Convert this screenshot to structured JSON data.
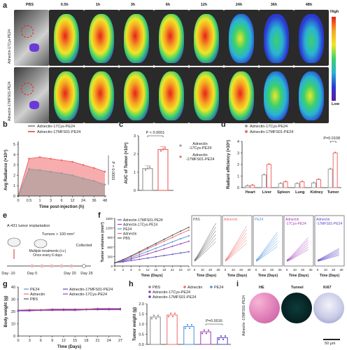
{
  "panel_a": {
    "letter": "a",
    "timepoints": [
      "PBS",
      "0.5h",
      "1h",
      "3h",
      "6h",
      "12h",
      "24h",
      "36h",
      "48h"
    ],
    "row1_label": "Adnectin-17Cys-PE24",
    "row2_label": "Adnectin-17MFS01-PE24",
    "scale_high": "High",
    "scale_low": "Low",
    "intensity_row1": [
      0,
      0.85,
      0.95,
      0.9,
      0.85,
      0.8,
      0.65,
      0.5,
      0.45
    ],
    "intensity_row2": [
      0,
      0.9,
      0.95,
      0.95,
      0.9,
      0.85,
      0.75,
      0.65,
      0.55
    ],
    "colors": {
      "high": "#e8211b",
      "mid": "#f0e626",
      "mid2": "#3bd16c",
      "low": "#2a3bd4"
    }
  },
  "panel_b": {
    "letter": "b",
    "chart_data": {
      "type": "area",
      "xlabel": "Time post-injection (h)",
      "ylabel": "Avg Radiance (×10⁸)",
      "x_ticks": [
        "0",
        "0.5",
        "1",
        "3",
        "6",
        "12",
        "24",
        "36",
        "48"
      ],
      "y_ticks": [
        "0",
        "1",
        "2",
        "3",
        "4",
        "5"
      ],
      "ylim": [
        0,
        5
      ],
      "series": [
        {
          "name": "Adnectin-17Cys-PE24",
          "color": "#9a9a9a",
          "values": [
            0,
            2.6,
            2.5,
            2.35,
            2.2,
            2.0,
            1.7,
            1.45,
            1.1
          ]
        },
        {
          "name": "Adnectin-17MFS01-PE24",
          "color": "#f06a6a",
          "values": [
            0,
            3.6,
            3.75,
            3.6,
            3.45,
            3.3,
            3.0,
            2.7,
            2.35
          ]
        }
      ],
      "annotation": "P = 0.0003"
    }
  },
  "panel_c": {
    "letter": "c",
    "chart_data": {
      "type": "bar",
      "ylabel": "AUC of Tumor (×10⁸)",
      "y_ticks": [
        "0",
        "1",
        "2",
        "3"
      ],
      "ylim": [
        0,
        3
      ],
      "categories": [
        "Adnectin -17Cys-PE24",
        "Adnectin -17MFS01-PE24"
      ],
      "values": [
        1.2,
        2.25
      ],
      "colors": [
        "#9a9a9a",
        "#f06a6a"
      ],
      "annotation": "P < 0.0001"
    }
  },
  "panel_d": {
    "letter": "d",
    "chart_data": {
      "type": "bar",
      "ylabel": "Radiant efficiency (×10⁸)",
      "y_ticks": [
        "0",
        "1",
        "2",
        "3",
        "4"
      ],
      "ylim": [
        0,
        4
      ],
      "categories": [
        "Heart",
        "Liver",
        "Spleen",
        "Lung",
        "Kidney",
        "Tumor"
      ],
      "series": [
        {
          "name": "Adnectin-17Cys-PE24",
          "color": "#9a9a9a",
          "values": [
            0.15,
            1.1,
            0.35,
            0.35,
            0.4,
            1.6
          ]
        },
        {
          "name": "Adnectin-17MFS01-PE24",
          "color": "#f06a6a",
          "values": [
            0.2,
            2.0,
            0.5,
            0.5,
            0.7,
            3.0
          ]
        }
      ],
      "annotation": "P=0.0108"
    }
  },
  "panel_e": {
    "letter": "e",
    "step1": "A-431 tumor implantation",
    "step2": "Tumors > 100 mm³",
    "step3": "Multiple treatments (i.v.), Once every 6 days",
    "step4": "Collected",
    "days": [
      "Day -10",
      "Day 0",
      "Day 20",
      "Day 25"
    ]
  },
  "panel_f": {
    "letter": "f",
    "chart_data": {
      "type": "line",
      "ylabel": "Tumor volumes (mm³)",
      "xlabel": "Time (Days)",
      "x": [
        0,
        3,
        6,
        9,
        12,
        15,
        18,
        21,
        24,
        27
      ],
      "x_ticks": [
        "0",
        "3",
        "6",
        "9",
        "12",
        "15",
        "18",
        "21",
        "24",
        "27"
      ],
      "y_ticks": [
        "0",
        "300",
        "600",
        "900",
        "1200",
        "1500"
      ],
      "ylim": [
        0,
        1500
      ],
      "series": [
        {
          "name": "Adnectin-17MFS01-PE24",
          "color": "#5a45c8",
          "values": [
            100,
            130,
            170,
            210,
            250,
            290,
            330,
            370,
            410,
            450
          ]
        },
        {
          "name": "Adnectin-17Cys-PE24",
          "color": "#a03cb8",
          "values": [
            100,
            150,
            220,
            300,
            380,
            460,
            540,
            620,
            700,
            780
          ]
        },
        {
          "name": "PE24",
          "color": "#4a90e2",
          "values": [
            100,
            170,
            260,
            360,
            460,
            560,
            660,
            760,
            860,
            950
          ]
        },
        {
          "name": "Adnectin",
          "color": "#f06a6a",
          "values": [
            100,
            190,
            300,
            420,
            540,
            660,
            780,
            900,
            1020,
            1130
          ]
        },
        {
          "name": "PBS",
          "color": "#555555",
          "values": [
            100,
            200,
            320,
            450,
            580,
            710,
            840,
            970,
            1100,
            1220
          ]
        }
      ],
      "mini_titles": [
        "PBS",
        "Adnectin",
        "PE24",
        "Adnectin -17Cys-PE24",
        "Adnectin -17MFS01-PE24"
      ],
      "mini_x_ticks": [
        "0",
        "10",
        "20",
        "30"
      ],
      "mini_xlabel": "Time (Days)"
    }
  },
  "panel_g": {
    "letter": "g",
    "chart_data": {
      "type": "line",
      "ylabel": "Body weight (g)",
      "xlabel": "Time (Days)",
      "x": [
        0,
        3,
        6,
        9,
        12,
        15,
        18,
        21,
        24,
        27
      ],
      "x_ticks": [
        "0",
        "3",
        "6",
        "9",
        "12",
        "15",
        "18",
        "21",
        "24",
        "27"
      ],
      "y_ticks": [
        "0",
        "10",
        "20",
        "30",
        "40"
      ],
      "ylim": [
        0,
        40
      ],
      "series": [
        {
          "name": "PE24",
          "color": "#4a90e2",
          "values": [
            21,
            21,
            21,
            21.5,
            21.5,
            21,
            21.5,
            21.5,
            21.5,
            22
          ]
        },
        {
          "name": "Adnectin",
          "color": "#f06a6a",
          "values": [
            21,
            21.5,
            21.5,
            22,
            22,
            22,
            22,
            22.5,
            22.5,
            22.5
          ]
        },
        {
          "name": "PBS",
          "color": "#555555",
          "values": [
            20.5,
            21,
            21,
            21,
            21.5,
            21.5,
            21.5,
            22,
            22,
            22
          ]
        },
        {
          "name": "Adnectin-17MFS01-PE24",
          "color": "#5a45c8",
          "values": [
            21,
            21,
            21,
            21.5,
            21.5,
            21.5,
            21.5,
            22,
            22,
            22
          ]
        },
        {
          "name": "Adnectin-17Cys-PE24",
          "color": "#a03cb8",
          "values": [
            20.5,
            20.5,
            21,
            21,
            21,
            21,
            21.5,
            21.5,
            21.5,
            21.5
          ]
        }
      ]
    }
  },
  "panel_h": {
    "letter": "h",
    "chart_data": {
      "type": "bar",
      "ylabel": "Tumor weight (g)",
      "y_ticks": [
        "0.0",
        "0.5",
        "1.0",
        "1.5",
        "2.0"
      ],
      "ylim": [
        0,
        2.0
      ],
      "categories": [
        "PBS",
        "Adnectin",
        "PE24",
        "Adnectin-17Cys-PE24",
        "Adnectin-17MFS01-PE24"
      ],
      "values": [
        1.35,
        1.45,
        0.88,
        0.62,
        0.33
      ],
      "colors": [
        "#888888",
        "#f06a6a",
        "#4a90e2",
        "#a03cb8",
        "#5a45c8"
      ],
      "annotation": "P=0.0016"
    }
  },
  "panel_i": {
    "letter": "i",
    "row_label": "Adnectin -17MFS01-PE24",
    "stains": [
      "HE",
      "Tunnel",
      "Ki67"
    ],
    "scale_bar": "50 μm"
  }
}
